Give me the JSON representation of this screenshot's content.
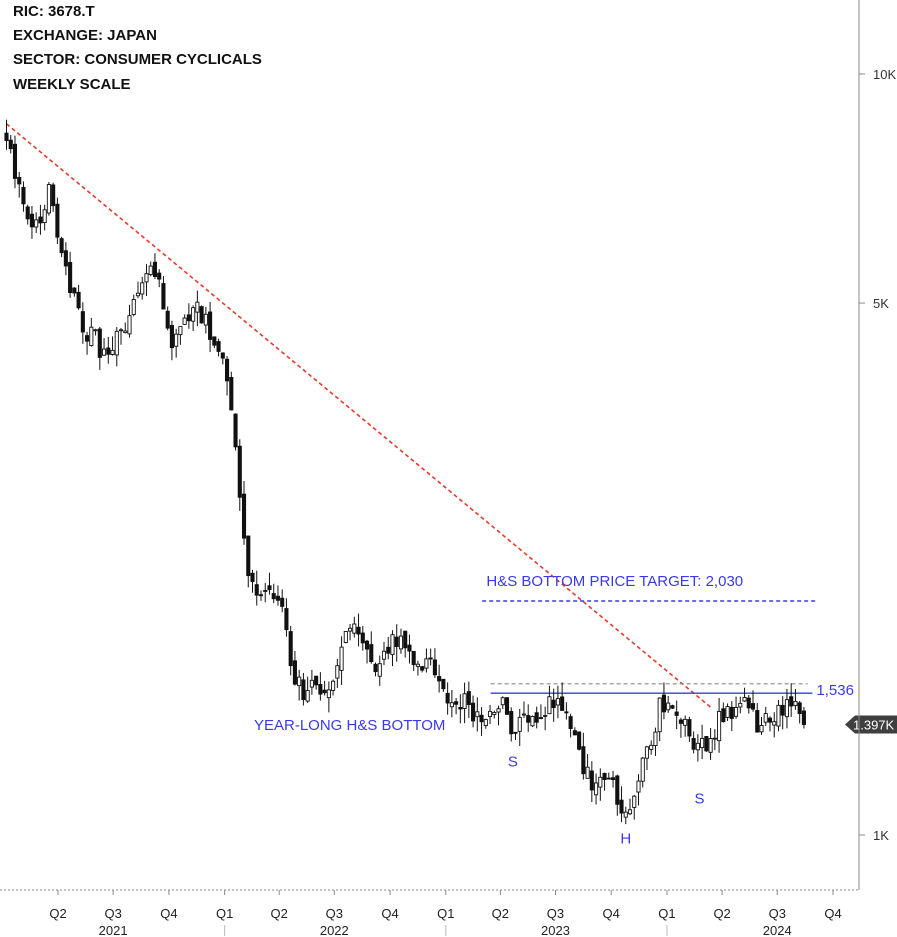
{
  "header": {
    "ric": "RIC:  3678.T",
    "exchange": "EXCHANGE:  JAPAN",
    "sector": "SECTOR:  CONSUMER CYCLICALS",
    "scale": "WEEKLY SCALE"
  },
  "chart_data": {
    "type": "candlestick",
    "scale": "log",
    "y_range": [
      880,
      12000
    ],
    "y_ticks": [
      {
        "value": 10000,
        "label": "10K"
      },
      {
        "value": 5000,
        "label": "5K"
      },
      {
        "value": 1000,
        "label": "1K"
      }
    ],
    "x_range": [
      "2021-01-01",
      "2024-12-01"
    ],
    "x_quarters": [
      {
        "date": "2021-04-01",
        "label": "Q2"
      },
      {
        "date": "2021-07-01",
        "label": "Q3"
      },
      {
        "date": "2021-10-01",
        "label": "Q4"
      },
      {
        "date": "2022-01-01",
        "label": "Q1"
      },
      {
        "date": "2022-04-01",
        "label": "Q2"
      },
      {
        "date": "2022-07-01",
        "label": "Q3"
      },
      {
        "date": "2022-10-01",
        "label": "Q4"
      },
      {
        "date": "2023-01-01",
        "label": "Q1"
      },
      {
        "date": "2023-04-01",
        "label": "Q2"
      },
      {
        "date": "2023-07-01",
        "label": "Q3"
      },
      {
        "date": "2023-10-01",
        "label": "Q4"
      },
      {
        "date": "2024-01-01",
        "label": "Q1"
      },
      {
        "date": "2024-04-01",
        "label": "Q2"
      },
      {
        "date": "2024-07-01",
        "label": "Q3"
      },
      {
        "date": "2024-10-01",
        "label": "Q4"
      }
    ],
    "x_years": [
      {
        "date": "2021-07-01",
        "label": "2021"
      },
      {
        "date": "2022-07-01",
        "label": "2022"
      },
      {
        "date": "2023-07-01",
        "label": "2023"
      },
      {
        "date": "2024-07-01",
        "label": "2024"
      }
    ],
    "year_dividers": [
      "2022-01-01",
      "2023-01-01",
      "2024-01-01"
    ],
    "price_path": [
      [
        "2021-01-06",
        8300
      ],
      [
        "2021-01-28",
        7000
      ],
      [
        "2021-02-18",
        6100
      ],
      [
        "2021-03-04",
        6500
      ],
      [
        "2021-03-18",
        7300
      ],
      [
        "2021-04-01",
        6000
      ],
      [
        "2021-04-22",
        5300
      ],
      [
        "2021-05-13",
        4600
      ],
      [
        "2021-06-03",
        4450
      ],
      [
        "2021-06-24",
        4200
      ],
      [
        "2021-07-15",
        4600
      ],
      [
        "2021-08-05",
        5000
      ],
      [
        "2021-08-26",
        5500
      ],
      [
        "2021-09-16",
        5200
      ],
      [
        "2021-10-07",
        4300
      ],
      [
        "2021-10-28",
        4800
      ],
      [
        "2021-11-18",
        4900
      ],
      [
        "2021-12-09",
        4600
      ],
      [
        "2021-12-30",
        4200
      ],
      [
        "2022-01-13",
        3700
      ],
      [
        "2022-01-27",
        2800
      ],
      [
        "2022-02-10",
        2100
      ],
      [
        "2022-03-03",
        2050
      ],
      [
        "2022-03-24",
        2020
      ],
      [
        "2022-04-07",
        1950
      ],
      [
        "2022-04-21",
        1650
      ],
      [
        "2022-05-12",
        1520
      ],
      [
        "2022-06-02",
        1600
      ],
      [
        "2022-06-23",
        1500
      ],
      [
        "2022-07-14",
        1800
      ],
      [
        "2022-08-04",
        1880
      ],
      [
        "2022-08-25",
        1700
      ],
      [
        "2022-09-15",
        1640
      ],
      [
        "2022-10-06",
        1850
      ],
      [
        "2022-10-27",
        1750
      ],
      [
        "2022-11-17",
        1700
      ],
      [
        "2022-12-08",
        1650
      ],
      [
        "2022-12-29",
        1560
      ],
      [
        "2023-01-19",
        1500
      ],
      [
        "2023-02-09",
        1470
      ],
      [
        "2023-03-02",
        1370
      ],
      [
        "2023-03-23",
        1430
      ],
      [
        "2023-04-06",
        1510
      ],
      [
        "2023-04-20",
        1330
      ],
      [
        "2023-05-11",
        1440
      ],
      [
        "2023-06-01",
        1400
      ],
      [
        "2023-06-22",
        1510
      ],
      [
        "2023-07-13",
        1480
      ],
      [
        "2023-08-03",
        1300
      ],
      [
        "2023-08-24",
        1200
      ],
      [
        "2023-09-14",
        1150
      ],
      [
        "2023-10-05",
        1160
      ],
      [
        "2023-10-26",
        1060
      ],
      [
        "2023-11-09",
        1150
      ],
      [
        "2023-11-30",
        1310
      ],
      [
        "2023-12-21",
        1480
      ],
      [
        "2024-01-11",
        1440
      ],
      [
        "2024-02-01",
        1400
      ],
      [
        "2024-02-22",
        1290
      ],
      [
        "2024-03-07",
        1300
      ],
      [
        "2024-03-28",
        1410
      ],
      [
        "2024-04-18",
        1470
      ],
      [
        "2024-05-09",
        1500
      ],
      [
        "2024-05-30",
        1380
      ],
      [
        "2024-06-20",
        1410
      ],
      [
        "2024-07-11",
        1460
      ],
      [
        "2024-08-01",
        1470
      ],
      [
        "2024-08-15",
        1397
      ]
    ],
    "downtrend_line": {
      "from": [
        "2021-01-06",
        8600
      ],
      "to": [
        "2024-03-14",
        1470
      ]
    },
    "neckline": {
      "value": 1536,
      "label": "1,536",
      "from": "2023-03-16",
      "to": "2024-08-28"
    },
    "resistance_dashed": {
      "value": 1580,
      "from": "2023-03-16",
      "to": "2024-08-20"
    },
    "target_line": {
      "value": 2030,
      "from": "2023-03-02",
      "to": "2024-09-06"
    },
    "last_price_label": "1.397K",
    "annotations": {
      "target_text": "H&S BOTTOM PRICE TARGET: 2,030",
      "pattern_text": "YEAR-LONG H&S BOTTOM",
      "left_shoulder": "S",
      "head": "H",
      "right_shoulder": "S"
    }
  },
  "colors": {
    "candle": "#111111",
    "trend": "#e53b2c",
    "pattern_blue": "#3a3ae8",
    "axis": "#888888",
    "last_price_bg": "#3f3f3f"
  }
}
